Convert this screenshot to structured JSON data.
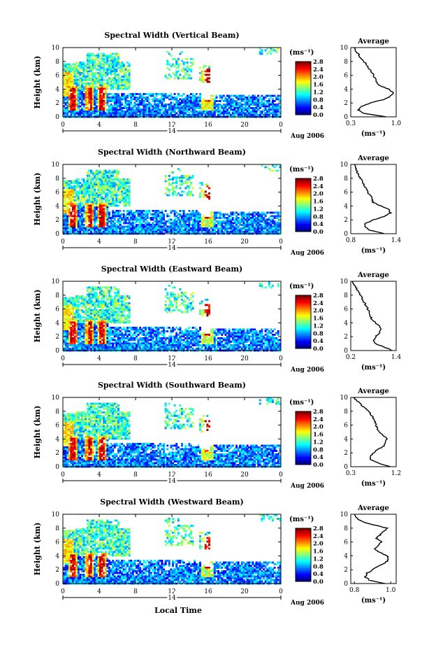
{
  "page": {
    "xlabel": "Local Time"
  },
  "chart_data": [
    {
      "type": "heatmap",
      "title": "Spectral Width (Vertical Beam)",
      "ylabel": "Height (km)",
      "xlim": [
        0,
        24
      ],
      "ylim": [
        0,
        10
      ],
      "xticks": [
        "0",
        "4",
        "8",
        "12",
        "16",
        "20",
        "0"
      ],
      "yticks": [
        "0",
        "2",
        "4",
        "6",
        "8",
        "10"
      ],
      "date_day": "14",
      "date_label": "Aug 2006",
      "colorbar": {
        "unit": "(ms⁻¹)",
        "ticks": [
          "0.0",
          "0.4",
          "0.8",
          "1.2",
          "1.6",
          "2.0",
          "2.4",
          "2.8"
        ]
      },
      "average": {
        "title": "Average",
        "xlabel": "(ms⁻¹)",
        "xticks": [
          "0.3",
          "1.0"
        ],
        "xlim": [
          0.3,
          1.0
        ],
        "heights": [
          0,
          0.5,
          1,
          1.5,
          2,
          2.5,
          3,
          3.5,
          4,
          4.5,
          5,
          5.5,
          6,
          6.5,
          7,
          7.5,
          8,
          8.5,
          9,
          9.5,
          10
        ],
        "values": [
          0.85,
          0.5,
          0.42,
          0.45,
          0.6,
          0.8,
          0.92,
          0.95,
          0.88,
          0.75,
          0.7,
          0.68,
          0.65,
          0.62,
          0.58,
          0.55,
          0.5,
          0.45,
          0.42,
          0.38,
          0.35
        ]
      }
    },
    {
      "type": "heatmap",
      "title": "Spectral Width (Northward Beam)",
      "ylabel": "Height (km)",
      "xlim": [
        0,
        24
      ],
      "ylim": [
        0,
        10
      ],
      "xticks": [
        "0",
        "4",
        "8",
        "12",
        "16",
        "20",
        "0"
      ],
      "yticks": [
        "0",
        "2",
        "4",
        "6",
        "8",
        "10"
      ],
      "date_day": "14",
      "date_label": "Aug 2006",
      "colorbar": {
        "unit": "(ms⁻¹)",
        "ticks": [
          "0.0",
          "0.4",
          "0.8",
          "1.2",
          "1.6",
          "2.0",
          "2.4",
          "2.8"
        ]
      },
      "average": {
        "title": "Average",
        "xlabel": "(ms⁻¹)",
        "xticks": [
          "0.8",
          "1.4"
        ],
        "xlim": [
          0.8,
          1.4
        ],
        "heights": [
          0,
          0.5,
          1,
          1.5,
          2,
          2.5,
          3,
          3.5,
          4,
          4.5,
          5,
          5.5,
          6,
          6.5,
          7,
          7.5,
          8,
          8.5,
          9,
          9.5,
          10
        ],
        "values": [
          1.25,
          1.05,
          0.98,
          1.0,
          1.1,
          1.25,
          1.33,
          1.3,
          1.2,
          1.1,
          1.08,
          1.06,
          1.02,
          1.0,
          0.98,
          0.96,
          0.92,
          0.9,
          0.88,
          0.86,
          0.85
        ]
      }
    },
    {
      "type": "heatmap",
      "title": "Spectral Width (Eastward Beam)",
      "ylabel": "Height (km)",
      "xlim": [
        0,
        24
      ],
      "ylim": [
        0,
        10
      ],
      "xticks": [
        "0",
        "4",
        "8",
        "12",
        "16",
        "20",
        "0"
      ],
      "yticks": [
        "0",
        "2",
        "4",
        "6",
        "8",
        "10"
      ],
      "date_day": "14",
      "date_label": "Aug 2006",
      "colorbar": {
        "unit": "(ms⁻¹)",
        "ticks": [
          "0.0",
          "0.4",
          "0.8",
          "1.2",
          "1.6",
          "2.0",
          "2.4",
          "2.8"
        ]
      },
      "average": {
        "title": "Average",
        "xlabel": "(ms⁻¹)",
        "xticks": [
          "0.2",
          "1.4"
        ],
        "xlim": [
          0.2,
          1.4
        ],
        "heights": [
          0,
          0.5,
          1,
          1.5,
          2,
          2.5,
          3,
          3.5,
          4,
          4.5,
          5,
          5.5,
          6,
          6.5,
          7,
          7.5,
          8,
          8.5,
          9,
          9.5,
          10
        ],
        "values": [
          1.3,
          1.1,
          0.85,
          0.8,
          0.85,
          0.95,
          1.0,
          0.95,
          0.85,
          0.75,
          0.72,
          0.7,
          0.65,
          0.6,
          0.55,
          0.5,
          0.45,
          0.4,
          0.35,
          0.3,
          0.25
        ]
      }
    },
    {
      "type": "heatmap",
      "title": "Spectral Width (Southward Beam)",
      "ylabel": "Height (km)",
      "xlim": [
        0,
        24
      ],
      "ylim": [
        0,
        10
      ],
      "xticks": [
        "0",
        "4",
        "8",
        "12",
        "16",
        "20",
        "0"
      ],
      "yticks": [
        "0",
        "2",
        "4",
        "6",
        "8",
        "10"
      ],
      "date_day": "14",
      "date_label": "Aug 2006",
      "colorbar": {
        "unit": "(ms⁻¹)",
        "ticks": [
          "0.0",
          "0.4",
          "0.8",
          "1.2",
          "1.6",
          "2.0",
          "2.4",
          "2.8"
        ]
      },
      "average": {
        "title": "Average",
        "xlabel": "(ms⁻¹)",
        "xticks": [
          "0.3",
          "1.2"
        ],
        "xlim": [
          0.3,
          1.2
        ],
        "heights": [
          0,
          0.5,
          1,
          1.5,
          2,
          2.5,
          3,
          3.5,
          4,
          4.5,
          5,
          5.5,
          6,
          6.5,
          7,
          7.5,
          8,
          8.5,
          9,
          9.5,
          10
        ],
        "values": [
          1.1,
          0.85,
          0.7,
          0.68,
          0.75,
          0.85,
          0.95,
          1.0,
          1.02,
          0.95,
          0.85,
          0.82,
          0.8,
          0.78,
          0.75,
          0.7,
          0.65,
          0.58,
          0.5,
          0.42,
          0.35
        ]
      }
    },
    {
      "type": "heatmap",
      "title": "Spectral Width (Westward Beam)",
      "ylabel": "Height (km)",
      "xlim": [
        0,
        24
      ],
      "ylim": [
        0,
        10
      ],
      "xticks": [
        "0",
        "4",
        "8",
        "12",
        "16",
        "20",
        "0"
      ],
      "yticks": [
        "0",
        "2",
        "4",
        "6",
        "8",
        "10"
      ],
      "date_day": "14",
      "date_label": "Aug 2006",
      "colorbar": {
        "unit": "(ms⁻¹)",
        "ticks": [
          "0.0",
          "0.4",
          "0.8",
          "1.2",
          "1.6",
          "2.0",
          "2.4",
          "2.8"
        ]
      },
      "average": {
        "title": "Average",
        "xlabel": "(ms⁻¹)",
        "xticks": [
          "0.8",
          "1.0"
        ],
        "xlim": [
          0.78,
          1.03
        ],
        "heights": [
          0,
          0.5,
          1,
          1.5,
          2,
          2.5,
          3,
          3.5,
          4,
          4.5,
          5,
          5.5,
          6,
          6.5,
          7,
          7.5,
          8,
          8.5,
          9,
          9.5,
          10
        ],
        "values": [
          0.97,
          0.88,
          0.86,
          0.87,
          0.9,
          0.93,
          0.97,
          0.99,
          0.98,
          0.94,
          0.91,
          0.93,
          0.95,
          0.92,
          0.94,
          0.96,
          0.98,
          0.9,
          0.84,
          0.81,
          0.8
        ]
      }
    }
  ]
}
